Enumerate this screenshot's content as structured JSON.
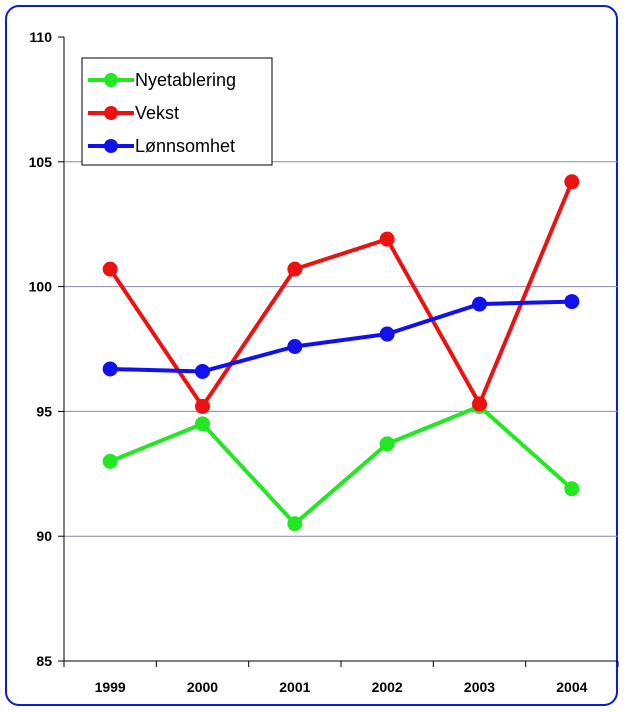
{
  "chart_data": {
    "type": "line",
    "title": "",
    "xlabel": "",
    "ylabel": "",
    "categories": [
      "1999",
      "2000",
      "2001",
      "2002",
      "2003",
      "2004"
    ],
    "ylim": [
      85,
      110
    ],
    "yticks": [
      85,
      90,
      95,
      100,
      105,
      110
    ],
    "ytick_labels": [
      "85",
      "90",
      "95",
      "100",
      "105",
      "110"
    ],
    "grid": "horizontal",
    "legend_position": "top-left",
    "series": [
      {
        "name": "Nyetablering",
        "color": "#22e822",
        "values": [
          93.0,
          94.5,
          90.5,
          93.7,
          95.2,
          91.9
        ]
      },
      {
        "name": "Vekst",
        "color": "#ee1111",
        "values": [
          100.7,
          95.2,
          100.7,
          101.9,
          95.3,
          104.2
        ]
      },
      {
        "name": "Lønnsomhet",
        "color": "#1111ee",
        "values": [
          96.7,
          96.6,
          97.6,
          98.1,
          99.3,
          99.4
        ]
      }
    ]
  }
}
